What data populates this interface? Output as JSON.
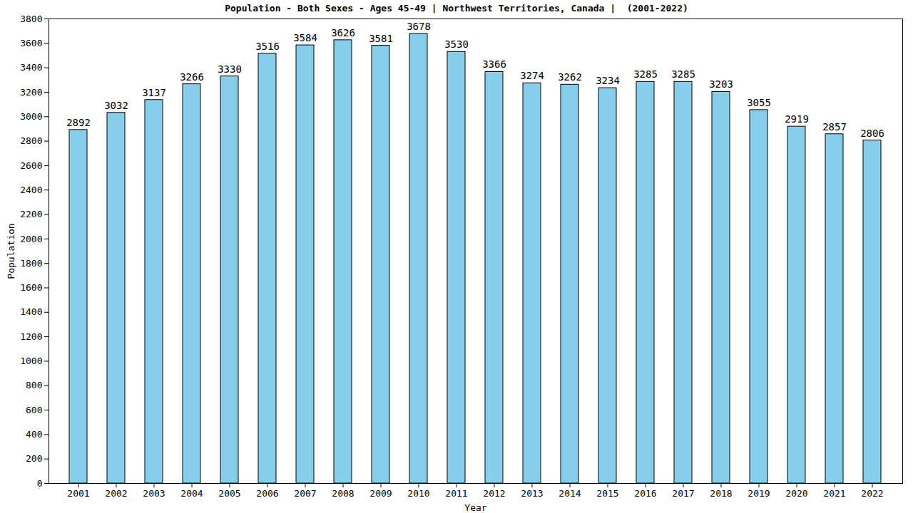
{
  "chart_data": {
    "type": "bar",
    "title": "Population - Both Sexes - Ages 45-49 | Northwest Territories, Canada |  (2001-2022)",
    "x_label": "Year",
    "y_label": "Population",
    "categories": [
      "2001",
      "2002",
      "2003",
      "2004",
      "2005",
      "2006",
      "2007",
      "2008",
      "2009",
      "2010",
      "2011",
      "2012",
      "2013",
      "2014",
      "2015",
      "2016",
      "2017",
      "2018",
      "2019",
      "2020",
      "2021",
      "2022"
    ],
    "values": [
      2892,
      3032,
      3137,
      3266,
      3330,
      3516,
      3584,
      3626,
      3581,
      3678,
      3530,
      3366,
      3274,
      3262,
      3234,
      3285,
      3285,
      3203,
      3055,
      2919,
      2857,
      2806
    ],
    "color": "#87ceeb",
    "ylim": [
      0,
      3800
    ],
    "yticks": [
      0,
      200,
      400,
      600,
      800,
      1000,
      1200,
      1400,
      1600,
      1800,
      2000,
      2200,
      2400,
      2600,
      2800,
      3000,
      3200,
      3400,
      3600,
      3800
    ],
    "grid": false,
    "data_labels": true
  }
}
